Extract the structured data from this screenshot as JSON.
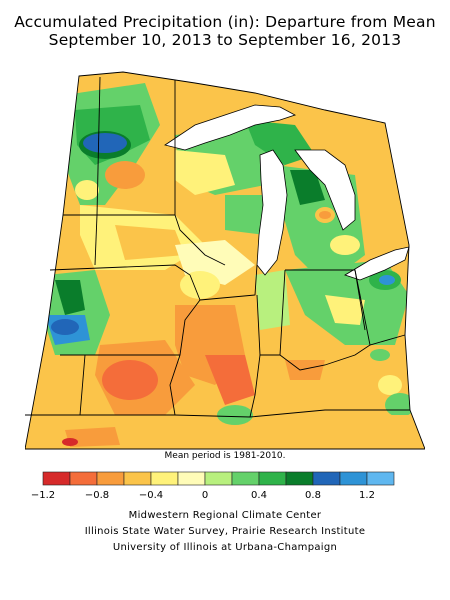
{
  "title": {
    "line1": "Accumulated Precipitation (in): Departure from Mean",
    "line2": "September 10, 2013 to September 16, 2013"
  },
  "note": "Mean period is 1981-2010.",
  "legend": {
    "bins": [
      {
        "color": "#d62a2a"
      },
      {
        "color": "#f46d3a"
      },
      {
        "color": "#f89c3c"
      },
      {
        "color": "#fbc44a"
      },
      {
        "color": "#fff27a"
      },
      {
        "color": "#fffcb8"
      },
      {
        "color": "#b8f07e"
      },
      {
        "color": "#64d16a"
      },
      {
        "color": "#2fb34a"
      },
      {
        "color": "#0a7d2b"
      },
      {
        "color": "#2166b8"
      },
      {
        "color": "#2e93d6"
      },
      {
        "color": "#5fb7ef"
      }
    ],
    "labels": [
      "-1.2",
      "-0.8",
      "-0.4",
      "0",
      "0.4",
      "0.8",
      "1.2"
    ]
  },
  "credits": {
    "line1": "Midwestern Regional Climate Center",
    "line2": "Illinois State Water Survey, Prairie Research Institute",
    "line3": "University of Illinois at Urbana-Champaign"
  },
  "map_colors": {
    "land_base": "#fbc44a",
    "water": "#ffffff",
    "border": "#000000"
  }
}
